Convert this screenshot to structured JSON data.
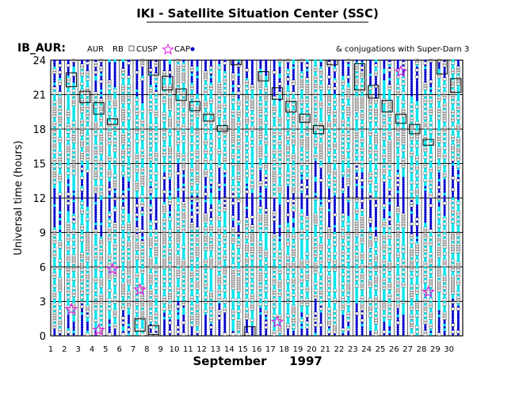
{
  "title": "IKI - Satellite Situation Center (SSC)",
  "region_label": "IB_AUR:",
  "legend": {
    "aur": "AUR",
    "rb": "RB",
    "cusp": "CUSP",
    "cap": "CAP",
    "conjugations": "& conjugations with Super-Darn 3"
  },
  "ylabel": "Universal time (hours)",
  "xlabel_month": "September",
  "xlabel_year": "1997",
  "colors": {
    "aur": "#00e5ee",
    "rb": "#808080",
    "cap": "#0000cc",
    "conj": "#e020e0",
    "grid": "#000000"
  },
  "chart_data": {
    "type": "heatmap",
    "title": "IKI - Satellite Situation Center (SSC)",
    "ylabel": "Universal time (hours)",
    "xlabel": "September 1997",
    "x_ticks": [
      1,
      2,
      3,
      4,
      5,
      6,
      7,
      8,
      9,
      10,
      11,
      12,
      13,
      14,
      15,
      16,
      17,
      18,
      19,
      20,
      21,
      22,
      23,
      24,
      25,
      26,
      27,
      28,
      29,
      30
    ],
    "y_ticks": [
      0,
      3,
      6,
      9,
      12,
      15,
      18,
      21,
      24
    ],
    "xlim": [
      1,
      31
    ],
    "ylim": [
      0,
      24
    ],
    "grid": true,
    "columns_per_day": 2,
    "series": [
      {
        "name": "AUR",
        "marker": "cyan-star"
      },
      {
        "name": "RB",
        "marker": "gray-square"
      },
      {
        "name": "CUSP",
        "marker": "magenta-star"
      },
      {
        "name": "CAP",
        "marker": "blue-dot"
      }
    ],
    "cusp_boxes": [
      {
        "day": 2,
        "ut": [
          21.7,
          22.9
        ]
      },
      {
        "day": 3,
        "ut": [
          20.3,
          21.3
        ]
      },
      {
        "day": 4,
        "ut": [
          19.3,
          20.3
        ]
      },
      {
        "day": 5,
        "ut": [
          18.4,
          18.9
        ]
      },
      {
        "day": 7,
        "ut": [
          0.4,
          1.5
        ]
      },
      {
        "day": 8,
        "ut": [
          0.1,
          0.9
        ]
      },
      {
        "day": 8,
        "ut": [
          22.7,
          24.0
        ]
      },
      {
        "day": 9,
        "ut": [
          21.4,
          22.6
        ]
      },
      {
        "day": 10,
        "ut": [
          20.5,
          21.5
        ]
      },
      {
        "day": 11,
        "ut": [
          19.6,
          20.4
        ]
      },
      {
        "day": 12,
        "ut": [
          18.7,
          19.3
        ]
      },
      {
        "day": 13,
        "ut": [
          17.8,
          18.3
        ]
      },
      {
        "day": 14,
        "ut": [
          23.6,
          24.0
        ]
      },
      {
        "day": 15,
        "ut": [
          0.0,
          0.8
        ]
      },
      {
        "day": 16,
        "ut": [
          22.2,
          23.0
        ]
      },
      {
        "day": 17,
        "ut": [
          20.6,
          21.6
        ]
      },
      {
        "day": 18,
        "ut": [
          19.5,
          20.4
        ]
      },
      {
        "day": 19,
        "ut": [
          18.6,
          19.3
        ]
      },
      {
        "day": 20,
        "ut": [
          17.6,
          18.3
        ]
      },
      {
        "day": 21,
        "ut": [
          23.6,
          24.0
        ]
      },
      {
        "day": 23,
        "ut": [
          21.4,
          23.7
        ]
      },
      {
        "day": 24,
        "ut": [
          20.7,
          21.8
        ]
      },
      {
        "day": 25,
        "ut": [
          19.5,
          20.5
        ]
      },
      {
        "day": 26,
        "ut": [
          18.5,
          19.3
        ]
      },
      {
        "day": 27,
        "ut": [
          17.6,
          18.4
        ]
      },
      {
        "day": 28,
        "ut": [
          16.6,
          17.1
        ]
      },
      {
        "day": 29,
        "ut": [
          22.8,
          24.0
        ]
      },
      {
        "day": 30,
        "ut": [
          21.2,
          22.4
        ]
      }
    ],
    "super_darn_conjugations": [
      {
        "day": 2,
        "ut": 2.3
      },
      {
        "day": 4,
        "ut": 0.5
      },
      {
        "day": 5,
        "ut": 5.8
      },
      {
        "day": 7,
        "ut": 4.0
      },
      {
        "day": 17,
        "ut": 1.2
      },
      {
        "day": 26,
        "ut": 23.0
      },
      {
        "day": 28,
        "ut": 3.8
      }
    ]
  }
}
